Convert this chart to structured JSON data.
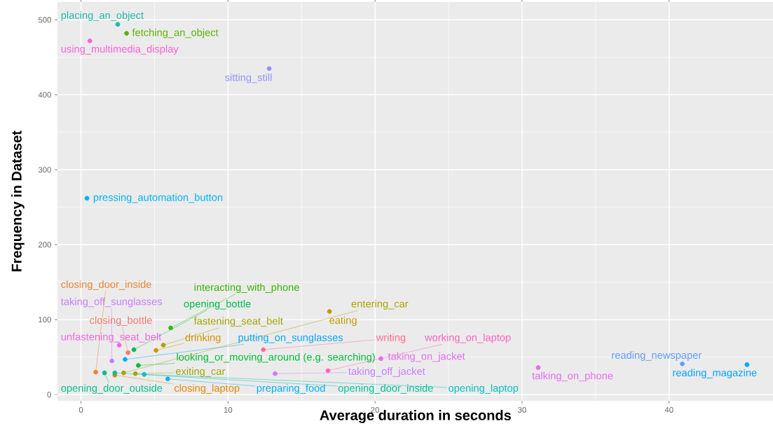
{
  "chart_data": {
    "type": "scatter",
    "xlabel": "Average duration in seconds",
    "ylabel": "Frequency in Dataset",
    "xlim": [
      -1.6,
      47.1
    ],
    "ylim": [
      -8.4,
      524
    ],
    "xticks": [
      0,
      10,
      20,
      30,
      40
    ],
    "yticks": [
      0,
      100,
      200,
      300,
      400,
      500
    ],
    "grid": true,
    "marker": "circle",
    "series": [
      {
        "name": "placing_an_object",
        "color": "#1fb8a6",
        "x": [
          2.5
        ],
        "values": [
          494
        ]
      },
      {
        "name": "fetching_an_object",
        "color": "#5bb300",
        "x": [
          3.1
        ],
        "values": [
          482
        ]
      },
      {
        "name": "using_multimedia_display",
        "color": "#fb61d7",
        "x": [
          0.6
        ],
        "values": [
          472
        ]
      },
      {
        "name": "sitting_still",
        "color": "#9590ff",
        "x": [
          12.8
        ],
        "values": [
          435
        ]
      },
      {
        "name": "pressing_automation_button",
        "color": "#00b4ef",
        "x": [
          0.4
        ],
        "values": [
          262
        ]
      },
      {
        "name": "interacting_with_phone",
        "color": "#39b600",
        "x": [
          6.1
        ],
        "values": [
          89
        ]
      },
      {
        "name": "taking_off_sunglasses",
        "color": "#c77cff",
        "x": [
          2.1
        ],
        "values": [
          45
        ]
      },
      {
        "name": "opening_bottle",
        "color": "#00bb4e",
        "x": [
          3.6
        ],
        "values": [
          60
        ]
      },
      {
        "name": "closing_bottle",
        "color": "#f8766d",
        "x": [
          3.2
        ],
        "values": [
          56
        ]
      },
      {
        "name": "fastening_seat_belt",
        "color": "#a3a500",
        "x": [
          5.6
        ],
        "values": [
          66
        ]
      },
      {
        "name": "eating",
        "color": "#c49a00",
        "x": [
          16.9
        ],
        "values": [
          111
        ]
      },
      {
        "name": "unfastening_seat_belt",
        "color": "#f564e3",
        "x": [
          2.6
        ],
        "values": [
          66
        ]
      },
      {
        "name": "drinking",
        "color": "#d39200",
        "x": [
          5.1
        ],
        "values": [
          59
        ]
      },
      {
        "name": "putting_on_sunglasses",
        "color": "#00a9ff",
        "x": [
          3.0
        ],
        "values": [
          47
        ]
      },
      {
        "name": "writing",
        "color": "#ff6c91",
        "x": [
          12.4
        ],
        "values": [
          60
        ]
      },
      {
        "name": "working_on_laptop",
        "color": "#ff62bc",
        "x": [
          16.8
        ],
        "values": [
          32
        ]
      },
      {
        "name": "looking_or_moving_around (e.g. searching)",
        "color": "#00ba38",
        "x": [
          3.9
        ],
        "values": [
          39
        ]
      },
      {
        "name": "entering_car",
        "color": "#aba300",
        "x": [
          2.9
        ],
        "values": [
          29
        ]
      },
      {
        "name": "taking_on_jacket",
        "color": "#e76bf3",
        "x": [
          20.4
        ],
        "values": [
          48
        ]
      },
      {
        "name": "closing_door_inside",
        "color": "#ea8331",
        "x": [
          1.0
        ],
        "values": [
          30
        ]
      },
      {
        "name": "exiting_car",
        "color": "#9ca700",
        "x": [
          3.7
        ],
        "values": [
          28
        ]
      },
      {
        "name": "taking_off_jacket",
        "color": "#c77cff",
        "x": [
          13.2
        ],
        "values": [
          28
        ]
      },
      {
        "name": "opening_door_outside",
        "color": "#00c08b",
        "x": [
          1.6
        ],
        "values": [
          29
        ]
      },
      {
        "name": "closing_laptop",
        "color": "#e58700",
        "x": [
          2.3
        ],
        "values": [
          26
        ]
      },
      {
        "name": "preparing_food",
        "color": "#00b0f6",
        "x": [
          5.9
        ],
        "values": [
          21
        ]
      },
      {
        "name": "opening_door_inside",
        "color": "#00c19a",
        "x": [
          2.3
        ],
        "values": [
          29
        ]
      },
      {
        "name": "opening_laptop",
        "color": "#00bfc4",
        "x": [
          4.3
        ],
        "values": [
          27
        ]
      },
      {
        "name": "talking_on_phone",
        "color": "#e76bf3",
        "x": [
          31.1
        ],
        "values": [
          36
        ]
      },
      {
        "name": "reading_newspaper",
        "color": "#619cff",
        "x": [
          40.9
        ],
        "values": [
          41
        ]
      },
      {
        "name": "reading_magazine",
        "color": "#00a5ff",
        "x": [
          45.3
        ],
        "values": [
          40
        ]
      }
    ]
  }
}
